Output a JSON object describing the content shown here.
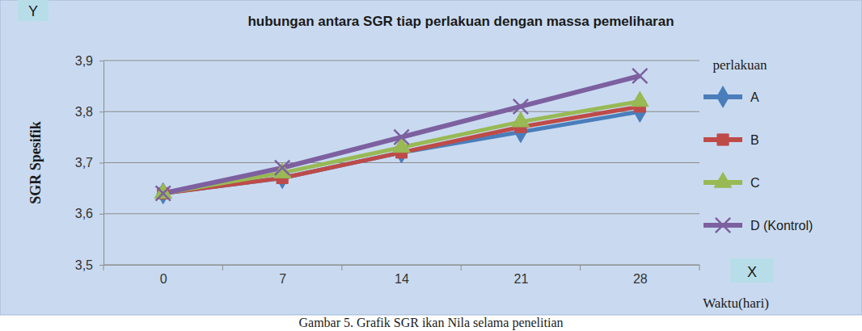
{
  "chart_data": {
    "type": "line",
    "title": "hubungan antara SGR tiap perlakuan dengan massa pemeliharan",
    "y_label": "SGR Spesifik",
    "x_label": "Waktu(hari)",
    "legend_title": "perlakuan",
    "annotations": [
      {
        "text": "Y"
      },
      {
        "text": "X"
      },
      {
        "text": "Gambar 5. Grafik SGR ikan Nila selama penelitian"
      }
    ],
    "categories": [
      "0",
      "7",
      "14",
      "21",
      "28"
    ],
    "series": [
      {
        "name": "A",
        "color": "#4a7ebb",
        "marker": "diamond",
        "values": [
          3.64,
          3.67,
          3.72,
          3.76,
          3.8
        ]
      },
      {
        "name": "B",
        "color": "#be4b48",
        "marker": "square",
        "values": [
          3.64,
          3.67,
          3.72,
          3.77,
          3.81
        ]
      },
      {
        "name": "C",
        "color": "#98b954",
        "marker": "triangle",
        "values": [
          3.64,
          3.68,
          3.73,
          3.78,
          3.82
        ]
      },
      {
        "name": "D (Kontrol)",
        "color": "#7d60a0",
        "marker": "x",
        "values": [
          3.64,
          3.69,
          3.75,
          3.81,
          3.87
        ]
      }
    ],
    "ylim": [
      3.5,
      3.9
    ],
    "yticks": [
      {
        "value": 3.5,
        "label": "3,5"
      },
      {
        "value": 3.6,
        "label": "3,6"
      },
      {
        "value": 3.7,
        "label": "3,7"
      },
      {
        "value": 3.8,
        "label": "3,8"
      },
      {
        "value": 3.9,
        "label": "3,9"
      }
    ],
    "grid": true,
    "legend": "right"
  }
}
